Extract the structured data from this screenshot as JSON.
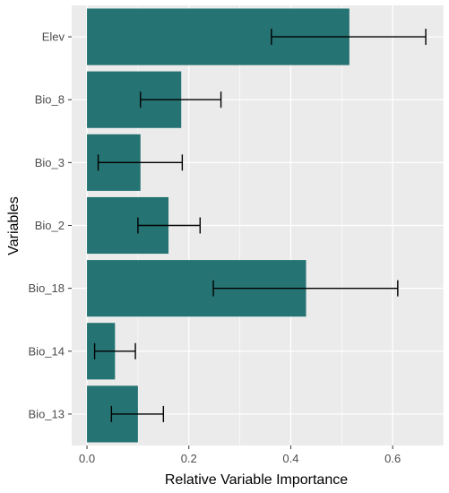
{
  "chart_data": {
    "type": "bar",
    "orientation": "horizontal",
    "categories": [
      "Elev",
      "Bio_8",
      "Bio_3",
      "Bio_2",
      "Bio_18",
      "Bio_14",
      "Bio_13"
    ],
    "values": [
      0.515,
      0.185,
      0.105,
      0.16,
      0.43,
      0.055,
      0.1
    ],
    "error_low": [
      0.362,
      0.105,
      0.022,
      0.1,
      0.248,
      0.015,
      0.048
    ],
    "error_high": [
      0.665,
      0.263,
      0.187,
      0.222,
      0.61,
      0.095,
      0.15
    ],
    "xlabel": "Relative Variable Importance",
    "ylabel": "Variables",
    "xlim": [
      -0.03,
      0.7
    ],
    "xticks": [
      0.0,
      0.2,
      0.4,
      0.6
    ],
    "xtick_labels": [
      "0.0",
      "0.2",
      "0.4",
      "0.6"
    ],
    "grid": true,
    "colors": {
      "bar": "#267373",
      "panel": "#ebebeb",
      "grid": "#ffffff",
      "error_bar": "#000000"
    }
  }
}
